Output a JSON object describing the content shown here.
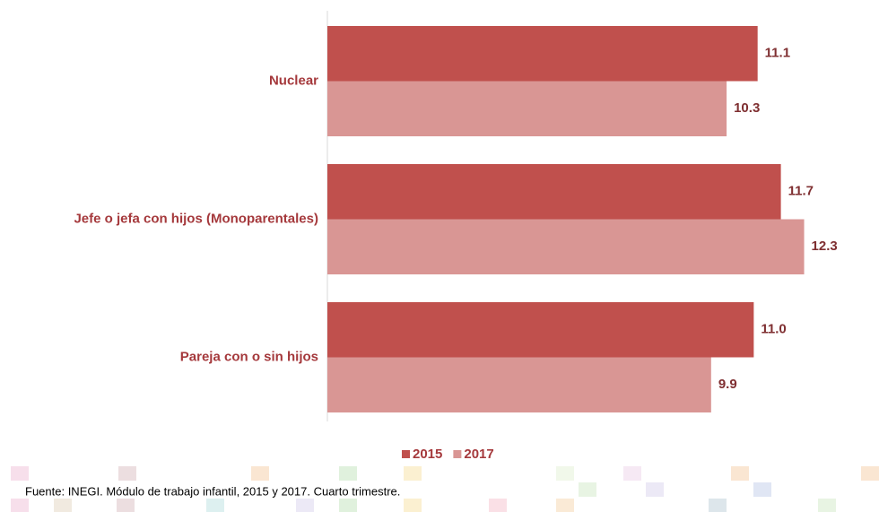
{
  "chart_data": {
    "type": "barh",
    "categories": [
      "Nuclear",
      "Jefe o jefa con hijos (Monoparentales)",
      "Pareja con o sin hijos"
    ],
    "series": [
      {
        "name": "2015",
        "color": "#c0504d",
        "values": [
          11.1,
          11.7,
          11.0
        ],
        "value_labels": [
          "11.1",
          "11.7",
          "11.0"
        ]
      },
      {
        "name": "2017",
        "color": "#d99694",
        "values": [
          10.3,
          12.3,
          9.9
        ],
        "value_labels": [
          "10.3",
          "12.3",
          "9.9"
        ]
      }
    ],
    "xlim": [
      0,
      14
    ],
    "legend": "bottom",
    "source": "Fuente: INEGI. Módulo de trabajo infantil, 2015 y 2017. Cuarto trimestre."
  }
}
